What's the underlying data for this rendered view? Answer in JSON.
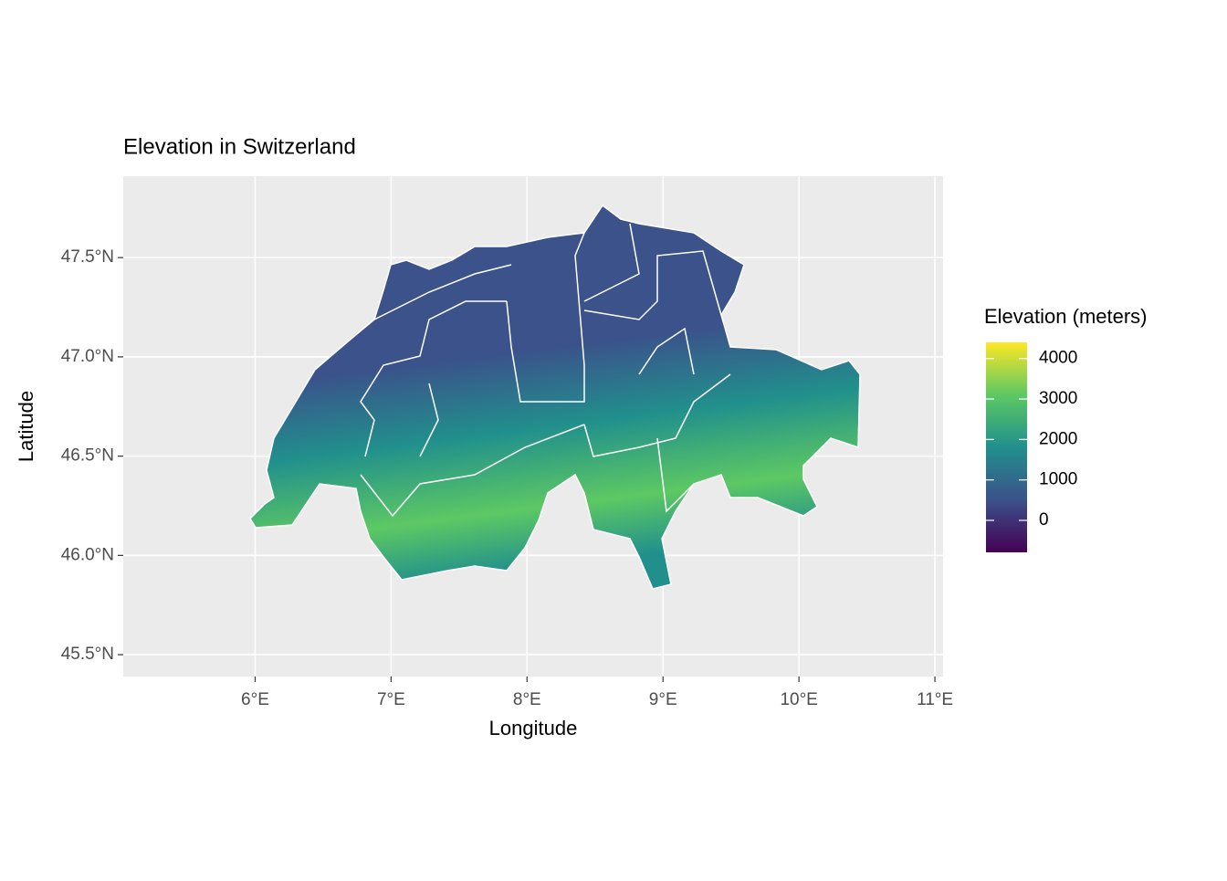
{
  "chart_data": {
    "type": "map",
    "title": "Elevation in Switzerland",
    "x_label": "Longitude",
    "y_label": "Latitude",
    "xlim": [
      5.03,
      11.06
    ],
    "ylim": [
      45.39,
      47.91
    ],
    "xticks": [
      {
        "value": 6,
        "label": "6°E"
      },
      {
        "value": 7,
        "label": "7°E"
      },
      {
        "value": 8,
        "label": "8°E"
      },
      {
        "value": 9,
        "label": "9°E"
      },
      {
        "value": 10,
        "label": "10°E"
      },
      {
        "value": 11,
        "label": "11°E"
      }
    ],
    "yticks": [
      {
        "value": 45.5,
        "label": "45.5°N"
      },
      {
        "value": 46,
        "label": "46.0°N"
      },
      {
        "value": 46.5,
        "label": "46.5°N"
      },
      {
        "value": 47,
        "label": "47.0°N"
      },
      {
        "value": 47.5,
        "label": "47.5°N"
      }
    ],
    "grid": true,
    "legend": {
      "title": "Elevation (meters)",
      "limits": [
        -790,
        4400
      ],
      "ticks": [
        0,
        1000,
        2000,
        3000,
        4000
      ],
      "colors": [
        "#440154",
        "#3b528b",
        "#21908c",
        "#5dc863",
        "#fde725"
      ]
    }
  }
}
